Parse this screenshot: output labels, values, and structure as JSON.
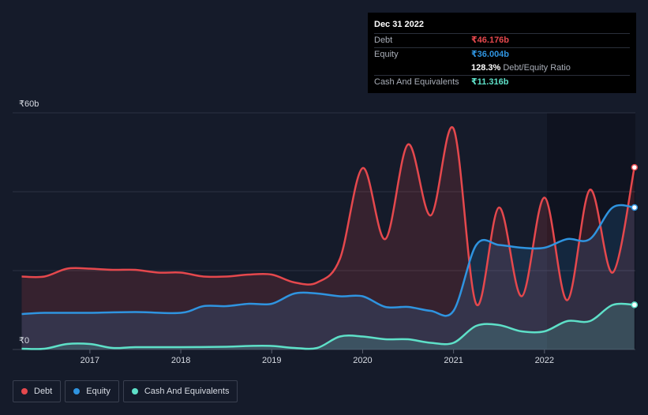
{
  "tooltip": {
    "date": "Dec 31 2022",
    "rows": [
      {
        "label": "Debt",
        "value": "₹46.176b",
        "color": "#e5484d"
      },
      {
        "label": "Equity",
        "value": "₹36.004b",
        "color": "#2f94e0"
      },
      {
        "label": "",
        "value": "128.3%",
        "unit": "Debt/Equity Ratio",
        "color": "#ffffff"
      },
      {
        "label": "Cash And Equivalents",
        "value": "₹11.316b",
        "color": "#5ee0c8"
      }
    ]
  },
  "legend": [
    {
      "label": "Debt",
      "color": "#e5484d"
    },
    {
      "label": "Equity",
      "color": "#2f94e0"
    },
    {
      "label": "Cash And Equivalents",
      "color": "#5ee0c8"
    }
  ],
  "chart_data": {
    "type": "area",
    "ylabel_top": "₹60b",
    "ylabel_bottom": "₹0",
    "ylim": [
      0,
      60
    ],
    "xlim": [
      2016.15,
      2023.0
    ],
    "xticks": [
      2017,
      2018,
      2019,
      2020,
      2021,
      2022
    ],
    "xtick_labels": [
      "2017",
      "2018",
      "2019",
      "2020",
      "2021",
      "2022"
    ],
    "series": [
      {
        "name": "Debt",
        "color": "#e5484d",
        "points": [
          [
            2016.25,
            18.5
          ],
          [
            2016.5,
            18.5
          ],
          [
            2016.75,
            20.5
          ],
          [
            2017.0,
            20.5
          ],
          [
            2017.25,
            20.2
          ],
          [
            2017.5,
            20.2
          ],
          [
            2017.75,
            19.5
          ],
          [
            2018.0,
            19.5
          ],
          [
            2018.25,
            18.5
          ],
          [
            2018.5,
            18.5
          ],
          [
            2018.75,
            19.0
          ],
          [
            2019.0,
            19.0
          ],
          [
            2019.25,
            17.0
          ],
          [
            2019.5,
            17.0
          ],
          [
            2019.75,
            23.0
          ],
          [
            2020.0,
            46.0
          ],
          [
            2020.25,
            28.0
          ],
          [
            2020.5,
            52.0
          ],
          [
            2020.75,
            34.0
          ],
          [
            2021.0,
            56.0
          ],
          [
            2021.25,
            11.5
          ],
          [
            2021.5,
            36.0
          ],
          [
            2021.75,
            13.5
          ],
          [
            2022.0,
            38.5
          ],
          [
            2022.25,
            12.5
          ],
          [
            2022.5,
            40.5
          ],
          [
            2022.75,
            19.5
          ],
          [
            2022.99,
            46.176
          ]
        ]
      },
      {
        "name": "Equity",
        "color": "#2f94e0",
        "points": [
          [
            2016.25,
            9.0
          ],
          [
            2016.5,
            9.3
          ],
          [
            2017.0,
            9.3
          ],
          [
            2017.5,
            9.5
          ],
          [
            2018.0,
            9.3
          ],
          [
            2018.25,
            11.0
          ],
          [
            2018.5,
            11.0
          ],
          [
            2018.75,
            11.6
          ],
          [
            2019.0,
            11.6
          ],
          [
            2019.25,
            14.2
          ],
          [
            2019.5,
            14.2
          ],
          [
            2019.75,
            13.5
          ],
          [
            2020.0,
            13.5
          ],
          [
            2020.25,
            10.8
          ],
          [
            2020.5,
            10.8
          ],
          [
            2020.75,
            9.8
          ],
          [
            2021.0,
            9.8
          ],
          [
            2021.25,
            26.5
          ],
          [
            2021.5,
            26.5
          ],
          [
            2021.75,
            25.8
          ],
          [
            2022.0,
            25.8
          ],
          [
            2022.25,
            28.0
          ],
          [
            2022.5,
            28.0
          ],
          [
            2022.75,
            36.0
          ],
          [
            2022.99,
            36.004
          ]
        ]
      },
      {
        "name": "Cash And Equivalents",
        "color": "#5ee0c8",
        "points": [
          [
            2016.25,
            0.2
          ],
          [
            2016.5,
            0.2
          ],
          [
            2016.75,
            1.4
          ],
          [
            2017.0,
            1.4
          ],
          [
            2017.25,
            0.4
          ],
          [
            2017.5,
            0.6
          ],
          [
            2018.0,
            0.6
          ],
          [
            2018.5,
            0.7
          ],
          [
            2018.75,
            0.9
          ],
          [
            2019.0,
            0.9
          ],
          [
            2019.25,
            0.4
          ],
          [
            2019.5,
            0.4
          ],
          [
            2019.75,
            3.3
          ],
          [
            2020.0,
            3.3
          ],
          [
            2020.25,
            2.6
          ],
          [
            2020.5,
            2.6
          ],
          [
            2020.75,
            1.7
          ],
          [
            2021.0,
            1.7
          ],
          [
            2021.25,
            6.0
          ],
          [
            2021.5,
            6.2
          ],
          [
            2021.75,
            4.6
          ],
          [
            2022.0,
            4.6
          ],
          [
            2022.25,
            7.2
          ],
          [
            2022.5,
            7.2
          ],
          [
            2022.75,
            11.3
          ],
          [
            2022.99,
            11.316
          ]
        ]
      }
    ]
  }
}
